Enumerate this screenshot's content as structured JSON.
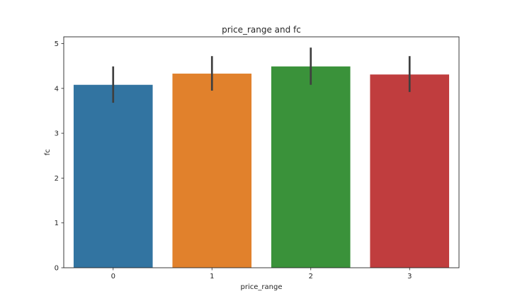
{
  "chart_data": {
    "type": "bar",
    "title": "price_range and fc",
    "xlabel": "price_range",
    "ylabel": "fc",
    "categories": [
      "0",
      "1",
      "2",
      "3"
    ],
    "values": [
      4.08,
      4.33,
      4.49,
      4.31
    ],
    "ci_low": [
      3.68,
      3.95,
      4.08,
      3.92
    ],
    "ci_high": [
      4.49,
      4.72,
      4.91,
      4.72
    ],
    "colors": [
      "#3274a1",
      "#e1812c",
      "#3a923a",
      "#c03d3e"
    ],
    "ylim": [
      0,
      5.15
    ],
    "yticks": [
      "0",
      "1",
      "2",
      "3",
      "4",
      "5"
    ],
    "grid": false,
    "legend": "none"
  }
}
